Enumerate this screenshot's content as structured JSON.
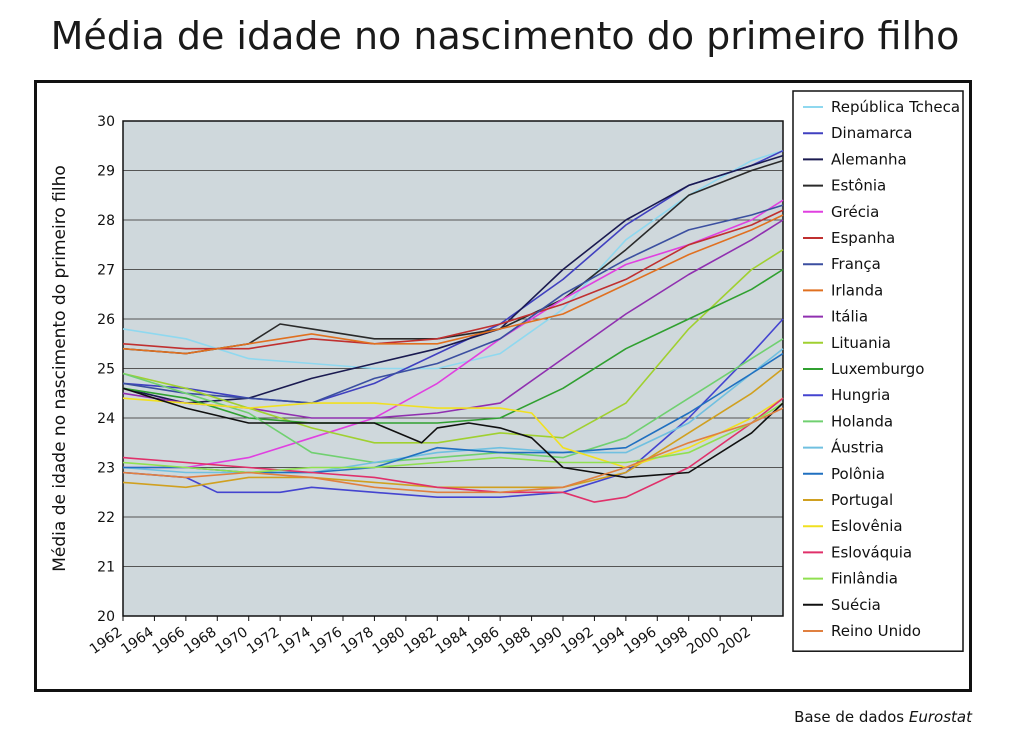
{
  "chart_data": {
    "type": "line",
    "title": "Média de idade no nascimento do primeiro filho",
    "ylabel": "Média de idade no nascimento do primeiro filho",
    "xlabel": "",
    "source_prefix": "Base de dados",
    "source_name": "Eurostat",
    "ylim": [
      20,
      30
    ],
    "xlim": [
      1962,
      2004
    ],
    "yticks": [
      20,
      21,
      22,
      23,
      24,
      25,
      26,
      27,
      28,
      29,
      30
    ],
    "xticks": [
      1962,
      1964,
      1966,
      1968,
      1970,
      1972,
      1974,
      1976,
      1978,
      1980,
      1982,
      1984,
      1986,
      1988,
      1990,
      1992,
      1994,
      1996,
      1998,
      2000,
      2002
    ],
    "grid": true,
    "legend_position": "right",
    "plot_background": "#cfd8dc",
    "series": [
      {
        "name": "República Tcheca",
        "color": "#8fd8ef",
        "points": [
          [
            1962,
            25.8
          ],
          [
            1966,
            25.6
          ],
          [
            1970,
            25.2
          ],
          [
            1974,
            25.1
          ],
          [
            1978,
            25.0
          ],
          [
            1982,
            25.0
          ],
          [
            1986,
            25.3
          ],
          [
            1990,
            26.2
          ],
          [
            1994,
            27.6
          ],
          [
            1998,
            28.5
          ],
          [
            2002,
            29.2
          ],
          [
            2004,
            29.4
          ]
        ]
      },
      {
        "name": "Dinamarca",
        "color": "#4040c0",
        "points": [
          [
            1962,
            24.7
          ],
          [
            1966,
            24.6
          ],
          [
            1970,
            24.4
          ],
          [
            1974,
            24.3
          ],
          [
            1978,
            24.7
          ],
          [
            1982,
            25.3
          ],
          [
            1986,
            25.9
          ],
          [
            1990,
            26.8
          ],
          [
            1994,
            27.9
          ],
          [
            1998,
            28.7
          ],
          [
            2002,
            29.1
          ],
          [
            2004,
            29.4
          ]
        ]
      },
      {
        "name": "Alemanha",
        "color": "#1a1a50",
        "points": [
          [
            1962,
            24.6
          ],
          [
            1966,
            24.3
          ],
          [
            1970,
            24.4
          ],
          [
            1974,
            24.8
          ],
          [
            1978,
            25.1
          ],
          [
            1982,
            25.4
          ],
          [
            1986,
            25.8
          ],
          [
            1990,
            27.0
          ],
          [
            1994,
            28.0
          ],
          [
            1998,
            28.7
          ],
          [
            2002,
            29.1
          ],
          [
            2004,
            29.3
          ]
        ]
      },
      {
        "name": "Estônia",
        "color": "#2a2a2a",
        "points": [
          [
            1962,
            25.4
          ],
          [
            1966,
            25.3
          ],
          [
            1970,
            25.5
          ],
          [
            1972,
            25.9
          ],
          [
            1974,
            25.8
          ],
          [
            1978,
            25.6
          ],
          [
            1982,
            25.6
          ],
          [
            1986,
            25.8
          ],
          [
            1990,
            26.4
          ],
          [
            1994,
            27.4
          ],
          [
            1998,
            28.5
          ],
          [
            2002,
            29.0
          ],
          [
            2004,
            29.2
          ]
        ]
      },
      {
        "name": "Grécia",
        "color": "#e040e0",
        "points": [
          [
            1962,
            23.0
          ],
          [
            1966,
            23.0
          ],
          [
            1970,
            23.2
          ],
          [
            1974,
            23.6
          ],
          [
            1978,
            24.0
          ],
          [
            1982,
            24.7
          ],
          [
            1986,
            25.6
          ],
          [
            1990,
            26.4
          ],
          [
            1994,
            27.1
          ],
          [
            1998,
            27.5
          ],
          [
            2002,
            28.0
          ],
          [
            2004,
            28.4
          ]
        ]
      },
      {
        "name": "Espanha",
        "color": "#c03030",
        "points": [
          [
            1962,
            25.5
          ],
          [
            1966,
            25.4
          ],
          [
            1970,
            25.4
          ],
          [
            1974,
            25.6
          ],
          [
            1978,
            25.5
          ],
          [
            1982,
            25.6
          ],
          [
            1986,
            25.9
          ],
          [
            1990,
            26.3
          ],
          [
            1994,
            26.8
          ],
          [
            1998,
            27.5
          ],
          [
            2002,
            27.9
          ],
          [
            2004,
            28.2
          ]
        ]
      },
      {
        "name": "França",
        "color": "#3b4fa0",
        "points": [
          [
            1962,
            24.7
          ],
          [
            1966,
            24.5
          ],
          [
            1970,
            24.4
          ],
          [
            1974,
            24.3
          ],
          [
            1978,
            24.8
          ],
          [
            1982,
            25.1
          ],
          [
            1986,
            25.6
          ],
          [
            1990,
            26.5
          ],
          [
            1994,
            27.2
          ],
          [
            1998,
            27.8
          ],
          [
            2002,
            28.1
          ],
          [
            2004,
            28.3
          ]
        ]
      },
      {
        "name": "Irlanda",
        "color": "#e07020",
        "points": [
          [
            1962,
            25.4
          ],
          [
            1966,
            25.3
          ],
          [
            1970,
            25.5
          ],
          [
            1974,
            25.7
          ],
          [
            1978,
            25.5
          ],
          [
            1982,
            25.5
          ],
          [
            1986,
            25.8
          ],
          [
            1990,
            26.1
          ],
          [
            1994,
            26.7
          ],
          [
            1998,
            27.3
          ],
          [
            2002,
            27.8
          ],
          [
            2004,
            28.1
          ]
        ]
      },
      {
        "name": "Itália",
        "color": "#9030b0",
        "points": [
          [
            1962,
            24.5
          ],
          [
            1966,
            24.3
          ],
          [
            1970,
            24.2
          ],
          [
            1974,
            24.0
          ],
          [
            1978,
            24.0
          ],
          [
            1982,
            24.1
          ],
          [
            1986,
            24.3
          ],
          [
            1990,
            25.2
          ],
          [
            1994,
            26.1
          ],
          [
            1998,
            26.9
          ],
          [
            2002,
            27.6
          ],
          [
            2004,
            28.0
          ]
        ]
      },
      {
        "name": "Lituania",
        "color": "#a0d030",
        "points": [
          [
            1962,
            24.9
          ],
          [
            1966,
            24.6
          ],
          [
            1970,
            24.2
          ],
          [
            1974,
            23.8
          ],
          [
            1978,
            23.5
          ],
          [
            1982,
            23.5
          ],
          [
            1986,
            23.7
          ],
          [
            1990,
            23.6
          ],
          [
            1994,
            24.3
          ],
          [
            1998,
            25.8
          ],
          [
            2002,
            27.0
          ],
          [
            2004,
            27.4
          ]
        ]
      },
      {
        "name": "Luxemburgo",
        "color": "#30a030",
        "points": [
          [
            1962,
            24.6
          ],
          [
            1966,
            24.4
          ],
          [
            1970,
            24.0
          ],
          [
            1974,
            23.9
          ],
          [
            1978,
            23.9
          ],
          [
            1982,
            23.9
          ],
          [
            1986,
            24.0
          ],
          [
            1990,
            24.6
          ],
          [
            1994,
            25.4
          ],
          [
            1998,
            26.0
          ],
          [
            2002,
            26.6
          ],
          [
            2004,
            27.0
          ]
        ]
      },
      {
        "name": "Hungria",
        "color": "#4444d0",
        "points": [
          [
            1962,
            22.9
          ],
          [
            1966,
            22.8
          ],
          [
            1968,
            22.5
          ],
          [
            1972,
            22.5
          ],
          [
            1974,
            22.6
          ],
          [
            1978,
            22.5
          ],
          [
            1982,
            22.4
          ],
          [
            1986,
            22.4
          ],
          [
            1990,
            22.5
          ],
          [
            1994,
            22.9
          ],
          [
            1998,
            24.0
          ],
          [
            2002,
            25.3
          ],
          [
            2004,
            26.0
          ]
        ]
      },
      {
        "name": "Holanda",
        "color": "#70d070",
        "points": [
          [
            1962,
            24.9
          ],
          [
            1966,
            24.5
          ],
          [
            1970,
            24.1
          ],
          [
            1974,
            23.3
          ],
          [
            1978,
            23.1
          ],
          [
            1982,
            23.2
          ],
          [
            1986,
            23.3
          ],
          [
            1990,
            23.2
          ],
          [
            1994,
            23.6
          ],
          [
            1998,
            24.4
          ],
          [
            2002,
            25.2
          ],
          [
            2004,
            25.6
          ]
        ]
      },
      {
        "name": "Áustria",
        "color": "#70c0e0",
        "points": [
          [
            1962,
            23.0
          ],
          [
            1966,
            22.9
          ],
          [
            1970,
            22.9
          ],
          [
            1974,
            22.9
          ],
          [
            1978,
            23.1
          ],
          [
            1982,
            23.3
          ],
          [
            1986,
            23.4
          ],
          [
            1990,
            23.3
          ],
          [
            1994,
            23.3
          ],
          [
            1998,
            23.9
          ],
          [
            2002,
            24.9
          ],
          [
            2004,
            25.4
          ]
        ]
      },
      {
        "name": "Polônia",
        "color": "#2070c0",
        "points": [
          [
            1962,
            23.0
          ],
          [
            1966,
            23.0
          ],
          [
            1970,
            22.9
          ],
          [
            1974,
            22.9
          ],
          [
            1978,
            23.0
          ],
          [
            1982,
            23.4
          ],
          [
            1986,
            23.3
          ],
          [
            1990,
            23.3
          ],
          [
            1994,
            23.4
          ],
          [
            1998,
            24.1
          ],
          [
            2002,
            24.9
          ],
          [
            2004,
            25.3
          ]
        ]
      },
      {
        "name": "Portugal",
        "color": "#d0a020",
        "points": [
          [
            1962,
            22.7
          ],
          [
            1966,
            22.6
          ],
          [
            1970,
            22.8
          ],
          [
            1974,
            22.8
          ],
          [
            1978,
            22.7
          ],
          [
            1982,
            22.6
          ],
          [
            1986,
            22.6
          ],
          [
            1990,
            22.6
          ],
          [
            1994,
            22.9
          ],
          [
            1998,
            23.7
          ],
          [
            2002,
            24.5
          ],
          [
            2004,
            25.0
          ]
        ]
      },
      {
        "name": "Eslovênia",
        "color": "#f0e020",
        "points": [
          [
            1962,
            24.4
          ],
          [
            1966,
            24.3
          ],
          [
            1970,
            24.2
          ],
          [
            1974,
            24.3
          ],
          [
            1978,
            24.3
          ],
          [
            1982,
            24.2
          ],
          [
            1986,
            24.2
          ],
          [
            1988,
            24.1
          ],
          [
            1990,
            23.4
          ],
          [
            1994,
            23.0
          ],
          [
            1998,
            23.4
          ],
          [
            2002,
            24.0
          ],
          [
            2004,
            24.4
          ]
        ]
      },
      {
        "name": "Eslováquia",
        "color": "#e0306a",
        "points": [
          [
            1962,
            23.2
          ],
          [
            1966,
            23.1
          ],
          [
            1970,
            23.0
          ],
          [
            1974,
            22.9
          ],
          [
            1978,
            22.8
          ],
          [
            1982,
            22.6
          ],
          [
            1986,
            22.5
          ],
          [
            1990,
            22.5
          ],
          [
            1992,
            22.3
          ],
          [
            1994,
            22.4
          ],
          [
            1998,
            23.0
          ],
          [
            2002,
            23.9
          ],
          [
            2004,
            24.4
          ]
        ]
      },
      {
        "name": "Finlândia",
        "color": "#90e050",
        "points": [
          [
            1962,
            23.1
          ],
          [
            1966,
            23.0
          ],
          [
            1970,
            22.9
          ],
          [
            1974,
            23.0
          ],
          [
            1978,
            23.0
          ],
          [
            1982,
            23.1
          ],
          [
            1986,
            23.2
          ],
          [
            1990,
            23.1
          ],
          [
            1994,
            23.1
          ],
          [
            1998,
            23.3
          ],
          [
            2002,
            23.9
          ],
          [
            2004,
            24.3
          ]
        ]
      },
      {
        "name": "Suécia",
        "color": "#101010",
        "points": [
          [
            1962,
            24.6
          ],
          [
            1966,
            24.2
          ],
          [
            1970,
            23.9
          ],
          [
            1974,
            23.9
          ],
          [
            1978,
            23.9
          ],
          [
            1981,
            23.5
          ],
          [
            1982,
            23.8
          ],
          [
            1984,
            23.9
          ],
          [
            1986,
            23.8
          ],
          [
            1988,
            23.6
          ],
          [
            1990,
            23.0
          ],
          [
            1994,
            22.8
          ],
          [
            1998,
            22.9
          ],
          [
            2002,
            23.7
          ],
          [
            2004,
            24.3
          ]
        ]
      },
      {
        "name": "Reino Unido",
        "color": "#e08040",
        "points": [
          [
            1962,
            22.9
          ],
          [
            1966,
            22.8
          ],
          [
            1970,
            22.9
          ],
          [
            1974,
            22.8
          ],
          [
            1978,
            22.6
          ],
          [
            1982,
            22.5
          ],
          [
            1986,
            22.5
          ],
          [
            1990,
            22.6
          ],
          [
            1994,
            23.0
          ],
          [
            1998,
            23.5
          ],
          [
            2002,
            23.9
          ],
          [
            2004,
            24.2
          ]
        ]
      }
    ]
  }
}
